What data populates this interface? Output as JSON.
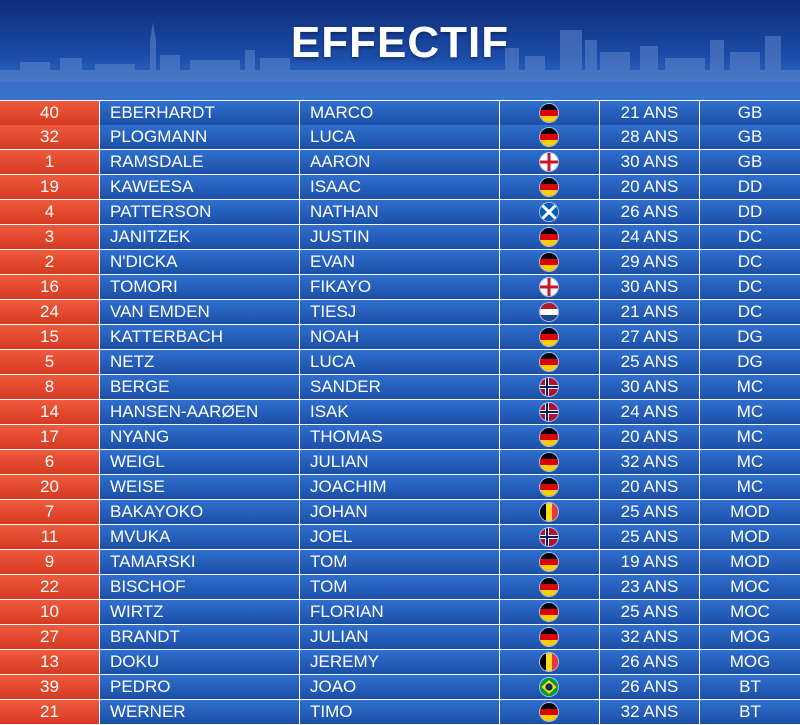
{
  "header": {
    "title": "EFFECTIF"
  },
  "colors": {
    "number_bg": "#e04a2f",
    "row_bg": "#2560c0",
    "divider": "#ffffff"
  },
  "players": [
    {
      "number": "40",
      "last": "EBERHARDT",
      "first": "MARCO",
      "flag": "germany-flag-icon",
      "age": "21 ANS",
      "pos": "GB"
    },
    {
      "number": "32",
      "last": "PLOGMANN",
      "first": "LUCA",
      "flag": "germany-flag-icon",
      "age": "28 ANS",
      "pos": "GB"
    },
    {
      "number": "1",
      "last": "RAMSDALE",
      "first": "AARON",
      "flag": "england-flag-icon",
      "age": "30 ANS",
      "pos": "GB"
    },
    {
      "number": "19",
      "last": "KAWEESA",
      "first": "ISAAC",
      "flag": "germany-flag-icon",
      "age": "20 ANS",
      "pos": "DD"
    },
    {
      "number": "4",
      "last": "PATTERSON",
      "first": "NATHAN",
      "flag": "scotland-flag-icon",
      "age": "26 ANS",
      "pos": "DD"
    },
    {
      "number": "3",
      "last": "JANITZEK",
      "first": "JUSTIN",
      "flag": "germany-flag-icon",
      "age": "24 ANS",
      "pos": "DC"
    },
    {
      "number": "2",
      "last": "N'DICKA",
      "first": "EVAN",
      "flag": "germany-flag-icon",
      "age": "29 ANS",
      "pos": "DC"
    },
    {
      "number": "16",
      "last": "TOMORI",
      "first": "FIKAYO",
      "flag": "england-flag-icon",
      "age": "30 ANS",
      "pos": "DC"
    },
    {
      "number": "24",
      "last": "VAN EMDEN",
      "first": "TIESJ",
      "flag": "netherlands-flag-icon",
      "age": "21 ANS",
      "pos": "DC"
    },
    {
      "number": "15",
      "last": "KATTERBACH",
      "first": "NOAH",
      "flag": "germany-flag-icon",
      "age": "27 ANS",
      "pos": "DG"
    },
    {
      "number": "5",
      "last": "NETZ",
      "first": "LUCA",
      "flag": "germany-flag-icon",
      "age": "25 ANS",
      "pos": "DG"
    },
    {
      "number": "8",
      "last": "BERGE",
      "first": "SANDER",
      "flag": "norway-flag-icon",
      "age": "30 ANS",
      "pos": "MC"
    },
    {
      "number": "14",
      "last": "HANSEN-AARØEN",
      "first": "ISAK",
      "flag": "norway-flag-icon",
      "age": "24 ANS",
      "pos": "MC"
    },
    {
      "number": "17",
      "last": "NYANG",
      "first": "THOMAS",
      "flag": "germany-flag-icon",
      "age": "20 ANS",
      "pos": "MC"
    },
    {
      "number": "6",
      "last": "WEIGL",
      "first": "JULIAN",
      "flag": "germany-flag-icon",
      "age": "32 ANS",
      "pos": "MC"
    },
    {
      "number": "20",
      "last": "WEISE",
      "first": "JOACHIM",
      "flag": "germany-flag-icon",
      "age": "20 ANS",
      "pos": "MC"
    },
    {
      "number": "7",
      "last": "BAKAYOKO",
      "first": "JOHAN",
      "flag": "belgium-flag-icon",
      "age": "25 ANS",
      "pos": "MOD"
    },
    {
      "number": "11",
      "last": "MVUKA",
      "first": "JOEL",
      "flag": "norway-flag-icon",
      "age": "25 ANS",
      "pos": "MOD"
    },
    {
      "number": "9",
      "last": "TAMARSKI",
      "first": "TOM",
      "flag": "germany-flag-icon",
      "age": "19 ANS",
      "pos": "MOD"
    },
    {
      "number": "22",
      "last": "BISCHOF",
      "first": "TOM",
      "flag": "germany-flag-icon",
      "age": "23 ANS",
      "pos": "MOC"
    },
    {
      "number": "10",
      "last": "WIRTZ",
      "first": "FLORIAN",
      "flag": "germany-flag-icon",
      "age": "25 ANS",
      "pos": "MOC"
    },
    {
      "number": "27",
      "last": "BRANDT",
      "first": "JULIAN",
      "flag": "germany-flag-icon",
      "age": "32 ANS",
      "pos": "MOG"
    },
    {
      "number": "13",
      "last": "DOKU",
      "first": "JEREMY",
      "flag": "belgium-flag-icon",
      "age": "26 ANS",
      "pos": "MOG"
    },
    {
      "number": "39",
      "last": "PEDRO",
      "first": "JOAO",
      "flag": "brazil-flag-icon",
      "age": "26 ANS",
      "pos": "BT"
    },
    {
      "number": "21",
      "last": "WERNER",
      "first": "TIMO",
      "flag": "germany-flag-icon",
      "age": "32 ANS",
      "pos": "BT"
    }
  ]
}
